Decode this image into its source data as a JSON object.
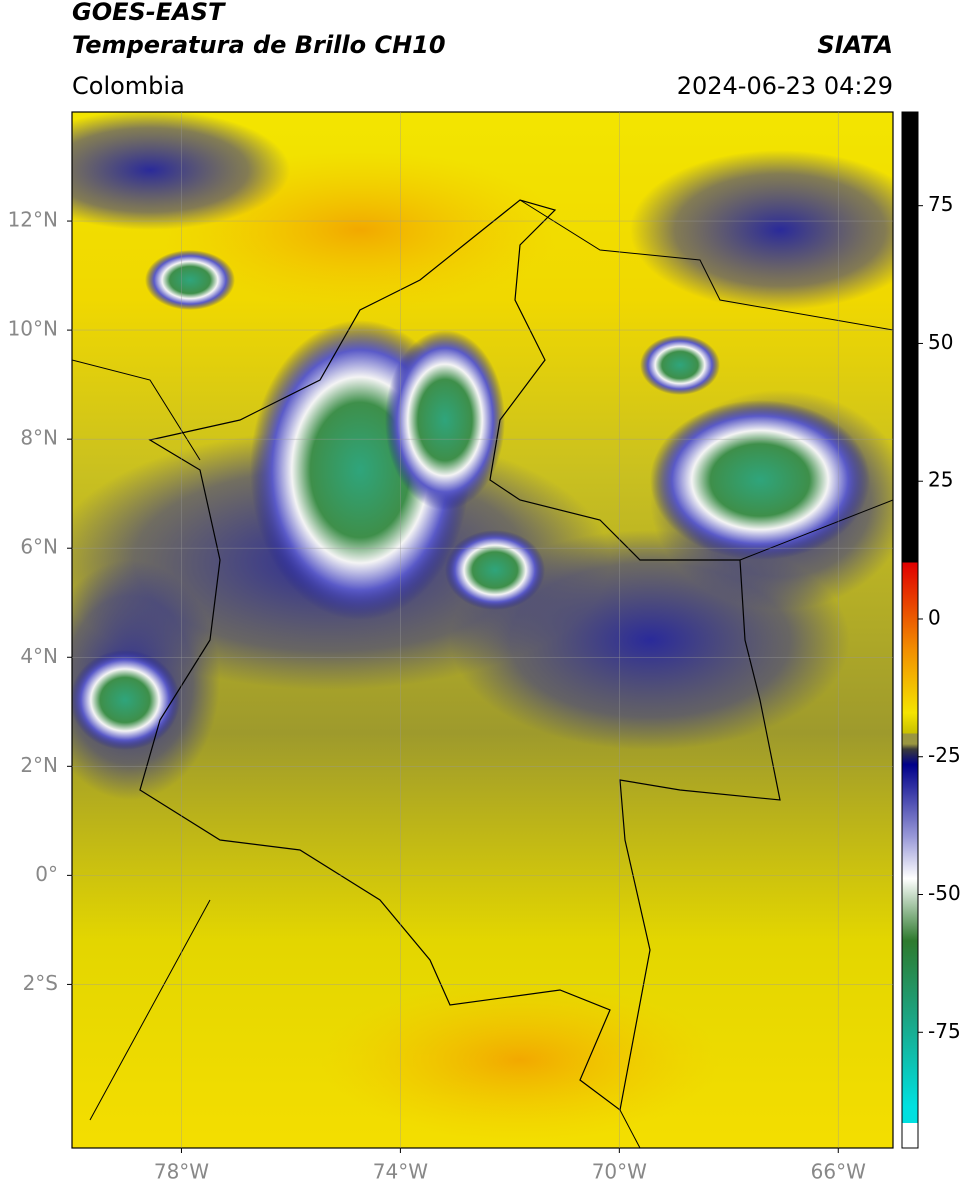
{
  "header": {
    "title": "GOES-EAST",
    "subtitle": "Temperatura de Brillo CH10",
    "source": "SIATA",
    "region": "Colombia",
    "timestamp": "2024-06-23 04:29"
  },
  "map": {
    "xlim": [
      -80,
      -65
    ],
    "ylim": [
      -5,
      14
    ],
    "xticks": [
      {
        "value": -78,
        "label": "78°W"
      },
      {
        "value": -74,
        "label": "74°W"
      },
      {
        "value": -70,
        "label": "70°W"
      },
      {
        "value": -66,
        "label": "66°W"
      }
    ],
    "yticks": [
      {
        "value": 12,
        "label": "12°N"
      },
      {
        "value": 10,
        "label": "10°N"
      },
      {
        "value": 8,
        "label": "8°N"
      },
      {
        "value": 6,
        "label": "6°N"
      },
      {
        "value": 4,
        "label": "4°N"
      },
      {
        "value": 2,
        "label": "2°N"
      },
      {
        "value": 0,
        "label": "0°"
      },
      {
        "value": -2,
        "label": "2°S"
      }
    ],
    "grid": true
  },
  "colorbar": {
    "lim": [
      -96,
      92
    ],
    "ticks": [
      75,
      50,
      25,
      0,
      -25,
      -50,
      -75
    ]
  }
}
